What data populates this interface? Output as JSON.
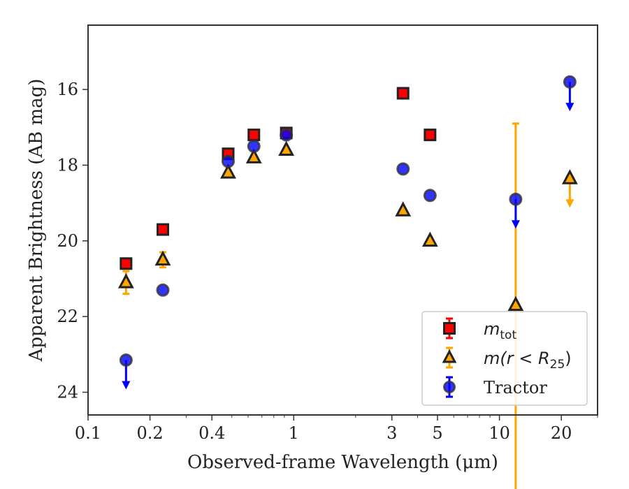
{
  "chart_data": {
    "type": "scatter",
    "xlabel": "Observed-frame Wavelength (μm)",
    "ylabel": "Apparent Brightness (AB mag)",
    "xscale": "log",
    "xlim": [
      0.1,
      30
    ],
    "ylim": [
      24.6,
      14.3
    ],
    "y_inverted": true,
    "grid": false,
    "legend_position": "bottom-right",
    "xticks": [
      {
        "value": 0.1,
        "label": "0.1"
      },
      {
        "value": 0.2,
        "label": "0.2"
      },
      {
        "value": 0.4,
        "label": "0.4"
      },
      {
        "value": 1,
        "label": "1"
      },
      {
        "value": 3,
        "label": "3"
      },
      {
        "value": 5,
        "label": "5"
      },
      {
        "value": 10,
        "label": "10"
      },
      {
        "value": 20,
        "label": "20"
      }
    ],
    "yticks": [
      {
        "value": 16,
        "label": "16"
      },
      {
        "value": 18,
        "label": "18"
      },
      {
        "value": 20,
        "label": "20"
      },
      {
        "value": 22,
        "label": "22"
      },
      {
        "value": 24,
        "label": "24"
      }
    ],
    "series": [
      {
        "name": "m_tot",
        "legend_label": "m",
        "legend_sub": "tot",
        "marker": "square",
        "color": "#ff0000",
        "edge_color": "#222222",
        "points": [
          {
            "x": 0.153,
            "y": 20.6
          },
          {
            "x": 0.231,
            "y": 19.7
          },
          {
            "x": 0.48,
            "y": 17.7
          },
          {
            "x": 0.64,
            "y": 17.2
          },
          {
            "x": 0.92,
            "y": 17.15
          },
          {
            "x": 3.4,
            "y": 16.1
          },
          {
            "x": 4.6,
            "y": 17.2
          }
        ]
      },
      {
        "name": "m(r < R25)",
        "legend_label": "m(r < R",
        "legend_sub": "25",
        "legend_close": ")",
        "marker": "triangle",
        "color": "#ffa500",
        "edge_color": "#222222",
        "points": [
          {
            "x": 0.153,
            "y": 21.1,
            "yerr": [
              0.3,
              0.3
            ]
          },
          {
            "x": 0.231,
            "y": 20.5,
            "yerr": [
              0.2,
              0.2
            ]
          },
          {
            "x": 0.48,
            "y": 18.2
          },
          {
            "x": 0.64,
            "y": 17.8
          },
          {
            "x": 0.92,
            "y": 17.6
          },
          {
            "x": 3.4,
            "y": 19.2
          },
          {
            "x": 4.6,
            "y": 20.0
          },
          {
            "x": 12.0,
            "y": 21.7,
            "yerr": [
              4.8,
              5.0
            ]
          },
          {
            "x": 22.0,
            "y": 18.35,
            "upper_limit": true
          }
        ]
      },
      {
        "name": "Tractor",
        "legend_label": "Tractor",
        "marker": "circle",
        "color": "#0000ff",
        "edge_color": "#333333",
        "points": [
          {
            "x": 0.153,
            "y": 23.15,
            "upper_limit": true
          },
          {
            "x": 0.231,
            "y": 21.3
          },
          {
            "x": 0.48,
            "y": 17.9
          },
          {
            "x": 0.64,
            "y": 17.5
          },
          {
            "x": 0.92,
            "y": 17.2
          },
          {
            "x": 3.4,
            "y": 18.1
          },
          {
            "x": 4.6,
            "y": 18.8
          },
          {
            "x": 12.0,
            "y": 18.9,
            "upper_limit": true
          },
          {
            "x": 22.0,
            "y": 15.8,
            "upper_limit": true
          }
        ]
      }
    ]
  }
}
